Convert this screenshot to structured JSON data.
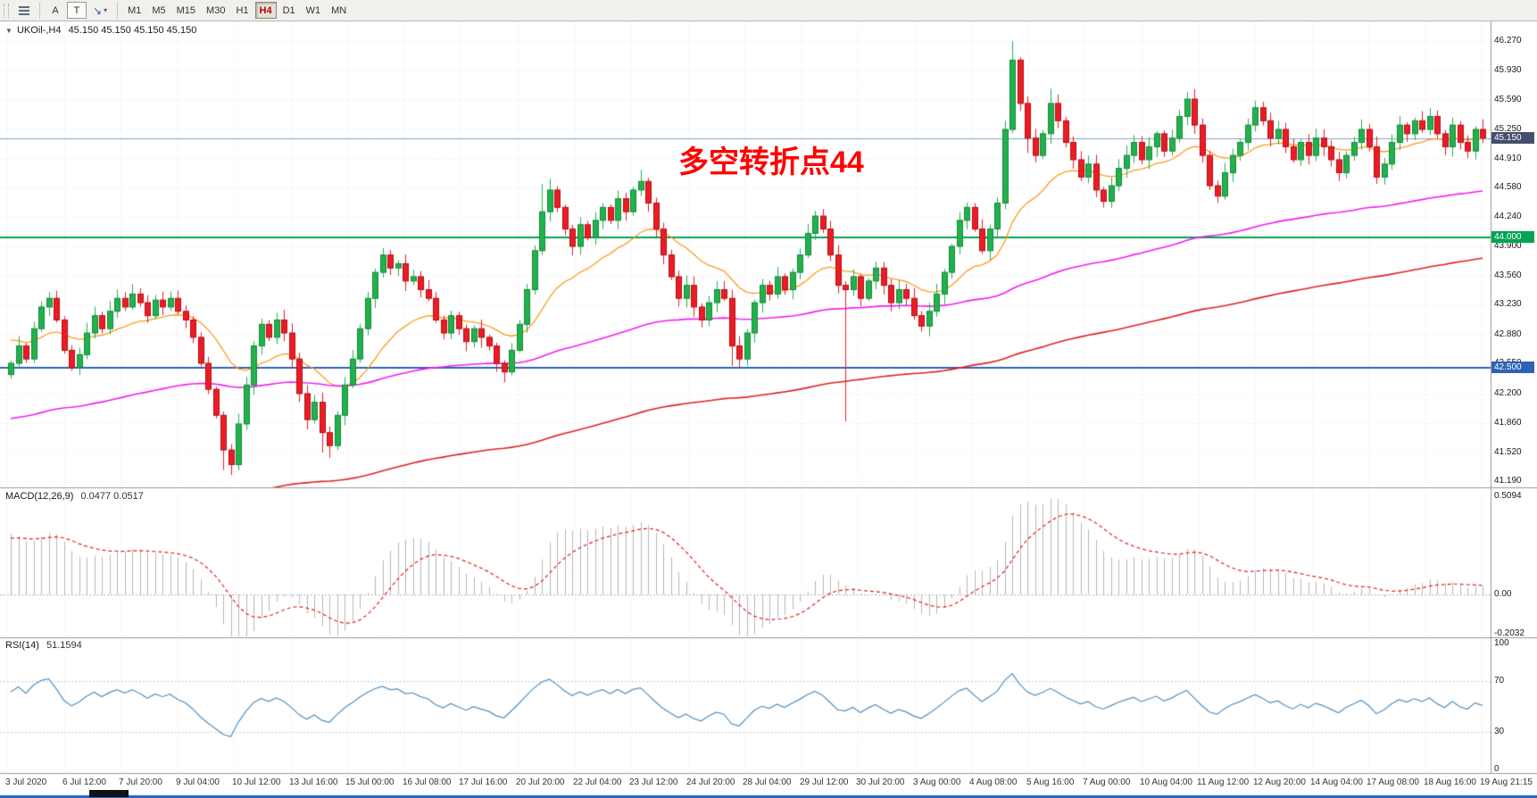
{
  "toolbar": {
    "buttons": {
      "text_label": "A",
      "text_tool": "T"
    },
    "timeframes": [
      "M1",
      "M5",
      "M15",
      "M30",
      "H1",
      "H4",
      "D1",
      "W1",
      "MN"
    ],
    "active_timeframe": "H4"
  },
  "chart": {
    "symbol_label": "UKOil-,H4",
    "ohlc_label": "45.150 45.150 45.150 45.150",
    "annotation": {
      "text": "多空转折点44",
      "color": "#ff0000"
    }
  },
  "macd_panel": {
    "title": "MACD(12,26,9)",
    "values": "0.0477 0.0517"
  },
  "rsi_panel": {
    "title": "RSI(14)",
    "value": "51.1594"
  },
  "chart_data": {
    "type": "candlestick",
    "symbol": "UKOil-",
    "timeframe": "H4",
    "title": "UKOil-,H4",
    "ohlc_current": [
      45.15,
      45.15,
      45.15,
      45.15
    ],
    "ylim": [
      41.19,
      46.27
    ],
    "y_labels": [
      "46.270",
      "45.930",
      "45.590",
      "45.250",
      "44.910",
      "44.580",
      "44.240",
      "43.900",
      "43.560",
      "43.230",
      "42.880",
      "42.550",
      "42.200",
      "41.860",
      "41.520",
      "41.190"
    ],
    "x_labels": [
      "3 Jul 2020",
      "6 Jul 12:00",
      "7 Jul 20:00",
      "9 Jul 04:00",
      "10 Jul 12:00",
      "13 Jul 16:00",
      "15 Jul 00:00",
      "16 Jul 08:00",
      "17 Jul 16:00",
      "20 Jul 20:00",
      "22 Jul 04:00",
      "23 Jul 12:00",
      "24 Jul 20:00",
      "28 Jul 04:00",
      "29 Jul 12:00",
      "30 Jul 20:00",
      "3 Aug 00:00",
      "4 Aug 08:00",
      "5 Aug 16:00",
      "7 Aug 00:00",
      "10 Aug 04:00",
      "11 Aug 12:00",
      "12 Aug 20:00",
      "14 Aug 04:00",
      "17 Aug 08:00",
      "18 Aug 16:00",
      "19 Aug 21:15"
    ],
    "first_open": 42.42,
    "closes": [
      42.55,
      42.75,
      42.6,
      42.95,
      43.2,
      43.3,
      43.05,
      42.7,
      42.5,
      42.65,
      42.9,
      43.1,
      42.95,
      43.15,
      43.3,
      43.2,
      43.35,
      43.25,
      43.1,
      43.28,
      43.2,
      43.3,
      43.15,
      43.05,
      42.85,
      42.55,
      42.25,
      41.95,
      41.55,
      41.38,
      41.85,
      42.3,
      42.75,
      43.0,
      42.85,
      43.05,
      42.9,
      42.6,
      42.2,
      41.9,
      42.1,
      41.75,
      41.6,
      41.95,
      42.3,
      42.6,
      42.95,
      43.3,
      43.6,
      43.8,
      43.65,
      43.7,
      43.5,
      43.55,
      43.4,
      43.3,
      43.05,
      42.9,
      43.1,
      42.95,
      42.8,
      42.95,
      42.85,
      42.75,
      42.55,
      42.45,
      42.7,
      43.0,
      43.4,
      43.85,
      44.3,
      44.55,
      44.35,
      44.1,
      43.9,
      44.15,
      44.0,
      44.2,
      44.35,
      44.2,
      44.45,
      44.3,
      44.55,
      44.65,
      44.4,
      44.1,
      43.8,
      43.55,
      43.3,
      43.45,
      43.2,
      43.05,
      43.25,
      43.4,
      43.3,
      42.75,
      42.6,
      42.9,
      43.25,
      43.45,
      43.35,
      43.55,
      43.4,
      43.6,
      43.8,
      44.05,
      44.25,
      44.1,
      43.8,
      43.45,
      43.4,
      43.55,
      43.3,
      43.5,
      43.65,
      43.45,
      43.25,
      43.4,
      43.3,
      43.1,
      42.98,
      43.15,
      43.35,
      43.6,
      43.9,
      44.2,
      44.35,
      44.1,
      43.85,
      44.1,
      44.4,
      45.25,
      46.05,
      45.55,
      45.15,
      44.95,
      45.2,
      45.55,
      45.35,
      45.1,
      44.9,
      44.7,
      44.85,
      44.55,
      44.42,
      44.6,
      44.8,
      44.95,
      45.1,
      44.9,
      45.05,
      45.2,
      45.0,
      45.15,
      45.4,
      45.6,
      45.3,
      44.95,
      44.6,
      44.48,
      44.75,
      44.95,
      45.1,
      45.3,
      45.5,
      45.35,
      45.15,
      45.25,
      45.05,
      44.9,
      45.1,
      44.95,
      45.15,
      45.05,
      44.9,
      44.75,
      44.95,
      45.1,
      45.25,
      45.05,
      44.7,
      44.85,
      45.1,
      45.3,
      45.2,
      45.35,
      45.25,
      45.4,
      45.2,
      45.05,
      45.3,
      45.1,
      45.0,
      45.25,
      45.15
    ],
    "wick_overrides": {
      "28": {
        "l": 41.32
      },
      "29": {
        "l": 41.26
      },
      "41": {
        "l": 41.52
      },
      "42": {
        "l": 41.46
      },
      "49": {
        "h": 43.88
      },
      "65": {
        "l": 42.33
      },
      "70": {
        "h": 44.62
      },
      "71": {
        "h": 44.68
      },
      "83": {
        "h": 44.78
      },
      "95": {
        "l": 42.52
      },
      "110": {
        "l": 41.88
      },
      "131": {
        "h": 45.35
      },
      "132": {
        "h": 46.27
      },
      "134": {
        "l": 44.98
      },
      "137": {
        "h": 45.72
      },
      "144": {
        "l": 44.35
      },
      "155": {
        "h": 45.68
      },
      "159": {
        "l": 44.4
      },
      "164": {
        "h": 45.58
      },
      "180": {
        "l": 44.62
      },
      "187": {
        "h": 45.5
      }
    },
    "colors": {
      "up": "#22b14c",
      "up_border": "#128a3a",
      "down": "#ed1c24",
      "down_border": "#b20f16",
      "macd_bars": "#b6b6b6",
      "macd_signal": "#e02020",
      "rsi_line": "#4f8fc0"
    },
    "hlines": [
      {
        "name": "current-price-line",
        "price": 45.15,
        "color": "#7fa6c8",
        "width": 1,
        "tag": "45.150",
        "tag_bg": "#44506b"
      },
      {
        "name": "level-44",
        "price": 44.0,
        "color": "#00a551",
        "width": 2,
        "tag": "44.000",
        "tag_bg": "#00a551"
      },
      {
        "name": "level-42.5",
        "price": 42.5,
        "color": "#2e62b8",
        "width": 2,
        "tag": "42.500",
        "tag_bg": "#2e62b8"
      }
    ],
    "moving_averages": [
      {
        "name": "fast-ma",
        "color": "#ff9a1f",
        "period": 18,
        "seed": 42.85,
        "width": 1.3
      },
      {
        "name": "medium-ma",
        "color": "#f21df2",
        "period": 110,
        "seed": 41.9,
        "width": 1.6
      },
      {
        "name": "slow-ma",
        "color": "#e02020",
        "period": 200,
        "seed": 40.4,
        "width": 1.6
      }
    ],
    "macd": {
      "params": [
        12,
        26,
        9
      ],
      "current": [
        0.0477,
        0.0517
      ],
      "ylim": [
        -0.2032,
        0.5094
      ],
      "axis_labels": [
        "0.5094",
        "0.00",
        "-0.2032"
      ]
    },
    "rsi": {
      "params": [
        14
      ],
      "current": 51.1594,
      "ylim": [
        0,
        100
      ],
      "levels": [
        70,
        30
      ],
      "axis_labels": [
        "100",
        "70",
        "30",
        "0"
      ]
    }
  }
}
